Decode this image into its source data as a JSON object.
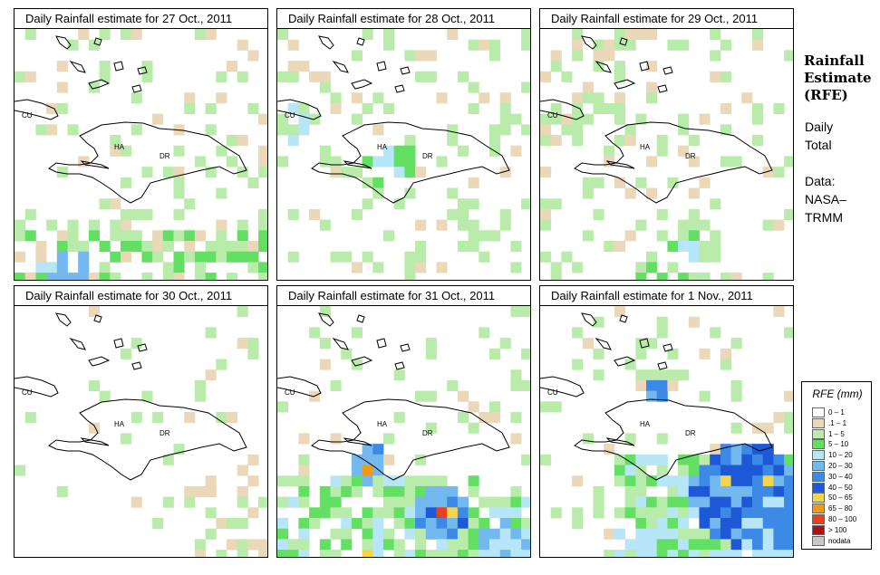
{
  "panels": [
    {
      "title": "Daily Rainfall estimate for  27 Oct., 2011",
      "seed": 27,
      "profile": "p27"
    },
    {
      "title": "Daily Rainfall estimate for  28 Oct., 2011",
      "seed": 28,
      "profile": "p28"
    },
    {
      "title": "Daily Rainfall estimate for  29 Oct., 2011",
      "seed": 29,
      "profile": "p29"
    },
    {
      "title": "Daily Rainfall estimate for  30 Oct., 2011",
      "seed": 30,
      "profile": "p30"
    },
    {
      "title": "Daily Rainfall estimate for  31 Oct., 2011",
      "seed": 31,
      "profile": "p31"
    },
    {
      "title": "Daily Rainfall estimate for  1 Nov., 2011",
      "seed": 101,
      "profile": "p01"
    }
  ],
  "map_labels": {
    "cuba": "CU",
    "haiti": "HA",
    "dominican_republic": "DR"
  },
  "side": {
    "title_line1": "Rainfall",
    "title_line2": "Estimate",
    "title_line3": "(RFE)",
    "period_line1": "Daily",
    "period_line2": "Total",
    "source_line1": "Data:",
    "source_line2": "NASA–",
    "source_line3": "TRMM"
  },
  "legend": {
    "title": "RFE (mm)",
    "classes": [
      {
        "label": "0 – 1",
        "color": "#ffffff"
      },
      {
        "label": ".1 – 1",
        "color": "#ead8b8"
      },
      {
        "label": "1 – 5",
        "color": "#b9ecaa"
      },
      {
        "label": "5 – 10",
        "color": "#63e063"
      },
      {
        "label": "10 – 20",
        "color": "#b6e6f7"
      },
      {
        "label": "20 – 30",
        "color": "#74b8f0"
      },
      {
        "label": "30 – 40",
        "color": "#3d8ae6"
      },
      {
        "label": "40 – 50",
        "color": "#1d58d6"
      },
      {
        "label": "50 – 65",
        "color": "#f5d64a"
      },
      {
        "label": "65 – 80",
        "color": "#f09a1a"
      },
      {
        "label": "80 – 100",
        "color": "#e8401c"
      },
      {
        "label": "> 100",
        "color": "#a81414"
      },
      {
        "label": "nodata",
        "color": "#c8c8c8"
      }
    ]
  }
}
